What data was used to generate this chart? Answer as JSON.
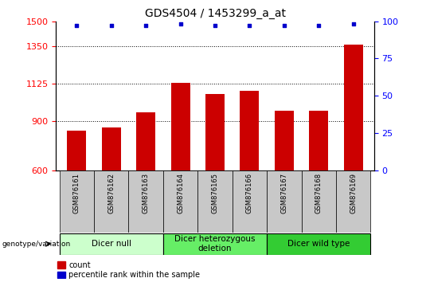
{
  "title": "GDS4504 / 1453299_a_at",
  "samples": [
    "GSM876161",
    "GSM876162",
    "GSM876163",
    "GSM876164",
    "GSM876165",
    "GSM876166",
    "GSM876167",
    "GSM876168",
    "GSM876169"
  ],
  "counts": [
    840,
    860,
    950,
    1130,
    1060,
    1080,
    960,
    960,
    1360
  ],
  "percentile_ranks": [
    97,
    97,
    97,
    98,
    97,
    97,
    97,
    97,
    98
  ],
  "ylim_left": [
    600,
    1500
  ],
  "ylim_right": [
    0,
    100
  ],
  "yticks_left": [
    600,
    900,
    1125,
    1350,
    1500
  ],
  "yticks_right": [
    0,
    25,
    50,
    75,
    100
  ],
  "bar_color": "#CC0000",
  "dot_color": "#0000CC",
  "groups": [
    {
      "label": "Dicer null",
      "start": 0,
      "end": 3,
      "color": "#CCFFCC"
    },
    {
      "label": "Dicer heterozygous\ndeletion",
      "start": 3,
      "end": 6,
      "color": "#66EE66"
    },
    {
      "label": "Dicer wild type",
      "start": 6,
      "end": 9,
      "color": "#33CC33"
    }
  ],
  "legend_count_label": "count",
  "legend_pct_label": "percentile rank within the sample",
  "genotype_label": "genotype/variation",
  "tick_bg_color": "#C8C8C8",
  "title_fontsize": 10,
  "axis_fontsize": 8,
  "label_fontsize": 7,
  "group_label_fontsize": 7.5
}
